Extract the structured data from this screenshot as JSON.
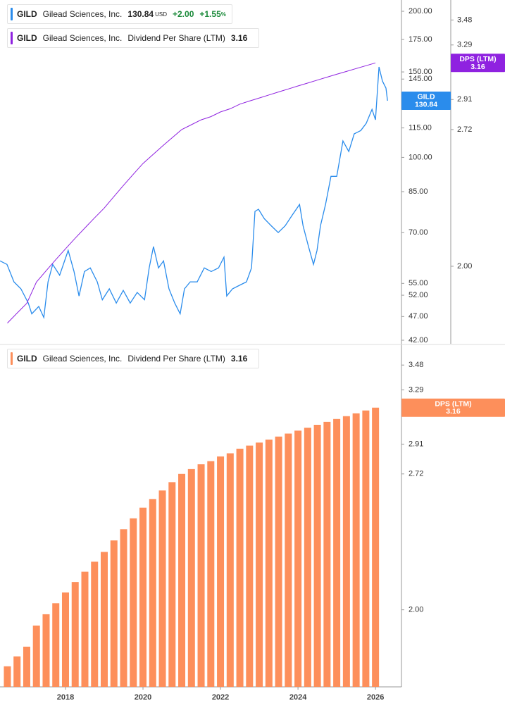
{
  "symbol": "GILD",
  "company": "Gilead Sciences, Inc.",
  "chart_data": [
    {
      "type": "line",
      "log_scale": true,
      "currency": "USD",
      "change": "+2.00",
      "change_pct": "+1.55",
      "pct_sign": "%",
      "xlim": [
        2016.31,
        2026.67
      ],
      "ylim": [
        41.3,
        211
      ],
      "yticks": [
        {
          "value": 200,
          "label": "200.00"
        },
        {
          "value": 175,
          "label": "175.00"
        },
        {
          "value": 150,
          "label": "150.00"
        },
        {
          "value": 145,
          "label": "145.00"
        },
        {
          "value": 115,
          "label": "115.00"
        },
        {
          "value": 100,
          "label": "100.00"
        },
        {
          "value": 85,
          "label": "85.00"
        },
        {
          "value": 70,
          "label": "70.00"
        },
        {
          "value": 55,
          "label": "55.00"
        },
        {
          "value": 52,
          "label": "52.00"
        },
        {
          "value": 47,
          "label": "47.00"
        },
        {
          "value": 42,
          "label": "42.00"
        }
      ],
      "y2lim": [
        1.68,
        3.64
      ],
      "y2ticks": [
        3.48,
        3.29,
        2.91,
        2.72,
        {
          "value": 2,
          "label": "2.00"
        }
      ],
      "series": [
        {
          "name": "GILD",
          "color": "#2a8cec",
          "x": [
            2016.31,
            2016.49,
            2016.67,
            2016.85,
            2017.04,
            2017.13,
            2017.31,
            2017.44,
            2017.55,
            2017.67,
            2017.85,
            2018.07,
            2018.22,
            2018.35,
            2018.49,
            2018.64,
            2018.82,
            2018.95,
            2019.13,
            2019.31,
            2019.49,
            2019.67,
            2019.85,
            2020.04,
            2020.16,
            2020.27,
            2020.4,
            2020.53,
            2020.67,
            2020.82,
            2020.96,
            2021.07,
            2021.22,
            2021.4,
            2021.58,
            2021.76,
            2021.95,
            2022.09,
            2022.16,
            2022.31,
            2022.49,
            2022.67,
            2022.8,
            2022.89,
            2022.98,
            2023.13,
            2023.31,
            2023.49,
            2023.67,
            2023.85,
            2024.04,
            2024.13,
            2024.27,
            2024.4,
            2024.49,
            2024.58,
            2024.71,
            2024.85,
            2025.0,
            2025.16,
            2025.31,
            2025.45,
            2025.62,
            2025.76,
            2025.91,
            2026.0,
            2026.09,
            2026.18,
            2026.27,
            2026.31
          ],
          "values": [
            61.2,
            60.2,
            55.4,
            53.6,
            50.1,
            47.6,
            49.3,
            46.8,
            55.4,
            60.2,
            57.2,
            64.3,
            58.2,
            51.8,
            58.2,
            59.2,
            55.4,
            50.9,
            53.6,
            50.1,
            53.2,
            50.1,
            52.7,
            50.9,
            59.2,
            65.5,
            59.2,
            61.2,
            53.6,
            50.1,
            47.6,
            53.6,
            55.4,
            55.4,
            59.2,
            58.2,
            59.2,
            62.3,
            51.8,
            53.6,
            54.5,
            55.4,
            59.2,
            77.4,
            78.2,
            74.8,
            72.3,
            70.0,
            72.3,
            76.0,
            80.0,
            72.3,
            65.5,
            60.2,
            64.3,
            72.3,
            80.0,
            91.4,
            91.4,
            108.1,
            102.8,
            111.8,
            113.6,
            117.5,
            125.6,
            119.5,
            153.6,
            143.6,
            138.9,
            130.84
          ]
        },
        {
          "name": "Dividend Per Share (LTM)",
          "short_name": "DPS (LTM)",
          "color": "#8f22e0",
          "axis": "y2",
          "x": [
            2016.5,
            2016.75,
            2017,
            2017.25,
            2017.5,
            2017.75,
            2018,
            2018.25,
            2018.5,
            2018.75,
            2019,
            2019.25,
            2019.5,
            2019.75,
            2020,
            2020.25,
            2020.5,
            2020.75,
            2021,
            2021.25,
            2021.5,
            2021.75,
            2022,
            2022.25,
            2022.5,
            2022.75,
            2023,
            2023.25,
            2023.5,
            2023.75,
            2024,
            2024.25,
            2024.5,
            2024.75,
            2025,
            2025.25,
            2025.5,
            2025.75,
            2026
          ],
          "values": [
            1.76,
            1.8,
            1.84,
            1.93,
            1.98,
            2.03,
            2.08,
            2.13,
            2.18,
            2.23,
            2.28,
            2.34,
            2.4,
            2.46,
            2.52,
            2.57,
            2.62,
            2.67,
            2.72,
            2.75,
            2.78,
            2.8,
            2.83,
            2.85,
            2.88,
            2.9,
            2.92,
            2.94,
            2.96,
            2.98,
            3.0,
            3.02,
            3.04,
            3.06,
            3.08,
            3.1,
            3.12,
            3.14,
            3.16
          ]
        }
      ]
    },
    {
      "type": "bar",
      "log_scale": true,
      "xlim": [
        2016.31,
        2026.67
      ],
      "xticks": [
        2018,
        2020,
        2022,
        2024,
        2026
      ],
      "ylim": [
        1.68,
        3.64
      ],
      "yticks": [
        3.48,
        3.29,
        2.91,
        2.72,
        {
          "value": 2,
          "label": "2.00"
        }
      ],
      "series": [
        {
          "name": "Dividend Per Share (LTM)",
          "short_name": "DPS (LTM)",
          "color": "#fd8f5b",
          "x": [
            2016.5,
            2016.75,
            2017,
            2017.25,
            2017.5,
            2017.75,
            2018,
            2018.25,
            2018.5,
            2018.75,
            2019,
            2019.25,
            2019.5,
            2019.75,
            2020,
            2020.25,
            2020.5,
            2020.75,
            2021,
            2021.25,
            2021.5,
            2021.75,
            2022,
            2022.25,
            2022.5,
            2022.75,
            2023,
            2023.25,
            2023.5,
            2023.75,
            2024,
            2024.25,
            2024.5,
            2024.75,
            2025,
            2025.25,
            2025.5,
            2025.75,
            2026
          ],
          "values": [
            1.76,
            1.8,
            1.84,
            1.93,
            1.98,
            2.03,
            2.08,
            2.13,
            2.18,
            2.23,
            2.28,
            2.34,
            2.4,
            2.46,
            2.52,
            2.57,
            2.62,
            2.67,
            2.72,
            2.75,
            2.78,
            2.8,
            2.83,
            2.85,
            2.88,
            2.9,
            2.92,
            2.94,
            2.96,
            2.98,
            3.0,
            3.02,
            3.04,
            3.06,
            3.08,
            3.1,
            3.12,
            3.14,
            3.16
          ]
        }
      ]
    }
  ]
}
